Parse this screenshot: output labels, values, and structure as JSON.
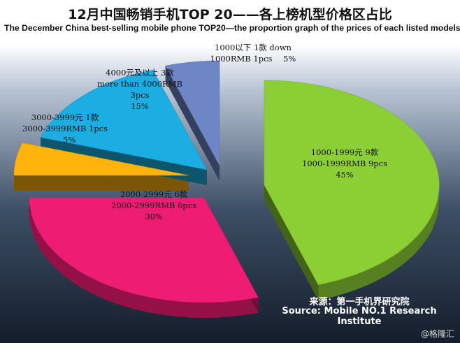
{
  "title_cn": "12月中国畅销手机TOP 20——各上榜机型价格区占比",
  "title_en": "The  December China best-selling mobile phone TOP20—the proportion graph of the prices of each listed models",
  "chart_data": {
    "type": "pie",
    "title": "12月中国畅销手机TOP 20——各上榜机型价格区占比",
    "subtitle": "The  December China best-selling mobile phone TOP20—the proportion graph of the prices of each listed models",
    "slices": [
      {
        "label_cn": "1000-1999元 9款",
        "label_en": "1000-1999RMB 9pcs",
        "count": 9,
        "percent": "45%",
        "value": 45,
        "color": "#8ccf35"
      },
      {
        "label_cn": "2000-2999元 6款",
        "label_en": "2000-2999RMB 6pcs",
        "count": 6,
        "percent": "30%",
        "value": 30,
        "color": "#ef1c73"
      },
      {
        "label_cn": "3000-3999元 1款",
        "label_en": "3000-3999RMB 1pcs",
        "count": 1,
        "percent": "5%",
        "value": 5,
        "color": "#ffb40c"
      },
      {
        "label_cn": "4000元及以上 3款",
        "label_en": "more than 4000RMB",
        "label_en2": "3pcs",
        "count": 3,
        "percent": "15%",
        "value": 15,
        "color": "#1caee3"
      },
      {
        "label_cn": "1000以下 1款  down",
        "label_en": "1000RMB 1pcs",
        "count": 1,
        "percent": "5%",
        "value": 5,
        "color": "#6f86c6"
      }
    ]
  },
  "source_cn": "来源：第一手机界研究院",
  "source_en": "Source: Mobile NO.1 Research Institute",
  "watermark": "@格隆汇"
}
